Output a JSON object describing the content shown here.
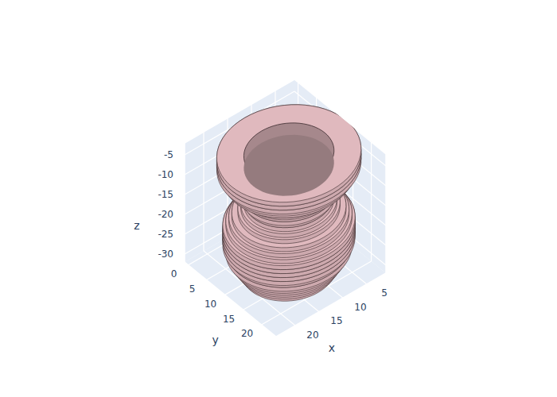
{
  "chart_data": {
    "type": "voxel",
    "x_label": "x",
    "y_label": "y",
    "z_label": "z",
    "xlim": [
      1,
      24
    ],
    "ylim": [
      -1,
      24
    ],
    "zlim": [
      -32,
      -2
    ],
    "xticks": [
      5,
      10,
      15,
      20
    ],
    "yticks": [
      0,
      5,
      10,
      15,
      20
    ],
    "zticks": [
      -30,
      -25,
      -20,
      -15,
      -10,
      -5
    ],
    "center": [
      12.5,
      12.5
    ],
    "layers": {
      "z": [
        -3,
        -4,
        -5,
        -6,
        -7,
        -8,
        -9,
        -10,
        -11,
        -12,
        -13,
        -14,
        -15,
        -16,
        -17,
        -18,
        -19,
        -20,
        -21,
        -22,
        -23,
        -24,
        -25,
        -26,
        -27,
        -28,
        -29,
        -30,
        -31
      ],
      "radius": [
        12,
        12,
        12,
        11.5,
        11,
        10,
        9,
        8.5,
        8,
        8,
        7.5,
        7.5,
        8,
        8.5,
        9.5,
        10,
        10.5,
        11,
        11,
        11,
        11,
        11,
        10.5,
        10.5,
        10,
        9.5,
        9,
        8.5,
        8
      ]
    },
    "opening_radius": 7.5,
    "color": "#cda9ae",
    "grid": true
  }
}
